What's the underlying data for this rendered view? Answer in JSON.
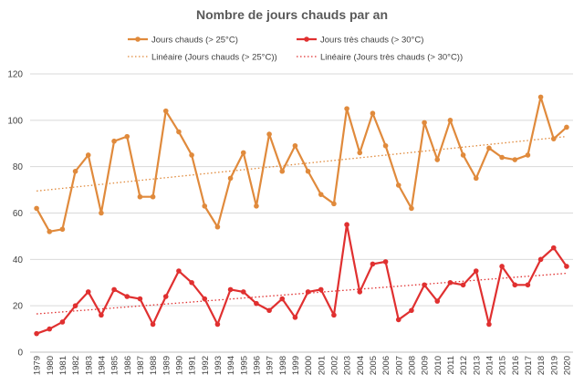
{
  "chart_data": {
    "type": "line",
    "title": "Nombre de jours chauds par an",
    "x": [
      1979,
      1980,
      1981,
      1982,
      1983,
      1984,
      1985,
      1986,
      1987,
      1988,
      1989,
      1990,
      1991,
      1992,
      1993,
      1994,
      1995,
      1996,
      1997,
      1998,
      1999,
      2000,
      2001,
      2002,
      2003,
      2004,
      2005,
      2006,
      2007,
      2008,
      2009,
      2010,
      2011,
      2012,
      2013,
      2014,
      2015,
      2016,
      2017,
      2018,
      2019,
      2020
    ],
    "x_labels": [
      "1979",
      "1980",
      "1981",
      "1982",
      "1983",
      "1984",
      "1985",
      "1986",
      "1987",
      "1988",
      "1989",
      "1990",
      "1991",
      "1992",
      "1993",
      "1994",
      "1995",
      "1996",
      "1997",
      "1998",
      "1999",
      "2000",
      "2001",
      "2002",
      "2003",
      "2004",
      "2005",
      "2006",
      "2007",
      "2008",
      "2009",
      "2010",
      "2011",
      "2012",
      "2013",
      "2014",
      "2015",
      "2016",
      "2017",
      "2018",
      "2019",
      "2020"
    ],
    "ylim": [
      0,
      120
    ],
    "y_ticks": [
      0,
      20,
      40,
      60,
      80,
      100,
      120
    ],
    "grid": true,
    "legend_position": "top",
    "series": [
      {
        "name": "Jours chauds (> 25°C)",
        "color": "#E08A3C",
        "values": [
          62,
          52,
          53,
          78,
          85,
          60,
          91,
          93,
          67,
          67,
          104,
          95,
          85,
          63,
          54,
          75,
          86,
          63,
          94,
          78,
          89,
          78,
          68,
          64,
          105,
          86,
          103,
          89,
          72,
          62,
          99,
          83,
          100,
          85,
          75,
          88,
          84,
          83,
          85,
          110,
          92,
          97
        ]
      },
      {
        "name": "Jours très chauds (> 30°C)",
        "color": "#E03030",
        "values": [
          8,
          10,
          13,
          20,
          26,
          16,
          27,
          24,
          23,
          12,
          24,
          35,
          30,
          23,
          12,
          27,
          26,
          21,
          18,
          23,
          15,
          26,
          27,
          16,
          55,
          26,
          38,
          39,
          14,
          18,
          29,
          22,
          30,
          29,
          35,
          12,
          37,
          29,
          29,
          40,
          45,
          37
        ]
      }
    ],
    "trendlines": [
      {
        "name": "Linéaire (Jours chauds (> 25°C))",
        "color": "#E08A3C",
        "start": 69.5,
        "end": 93
      },
      {
        "name": "Linéaire (Jours très chauds (> 30°C))",
        "color": "#E03030",
        "start": 16.5,
        "end": 34
      }
    ]
  }
}
